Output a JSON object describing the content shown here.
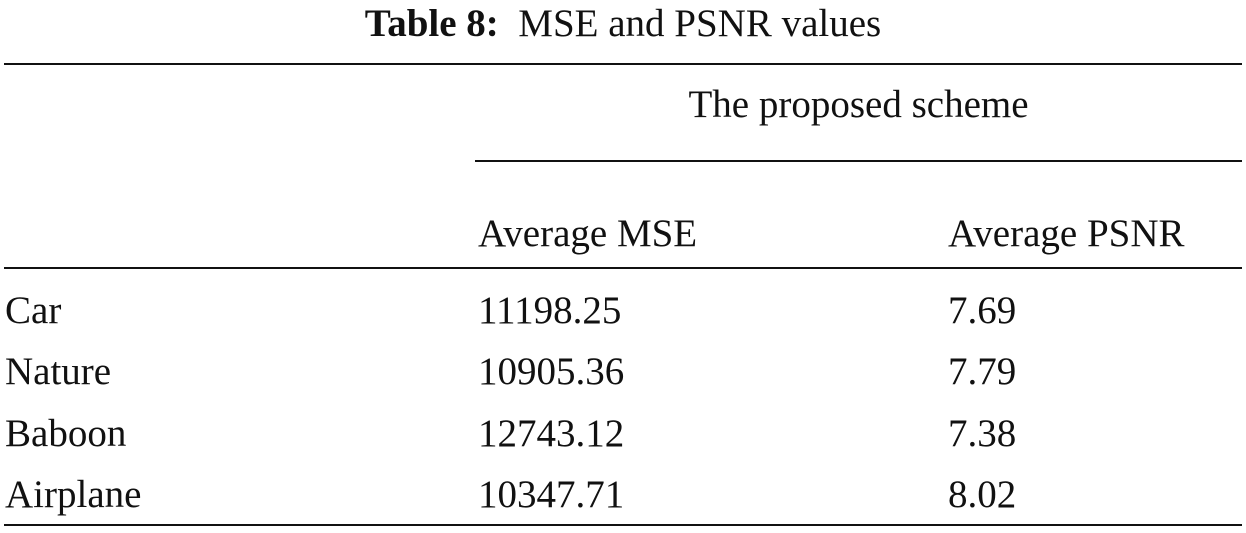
{
  "table": {
    "caption": {
      "label": "Table 8:",
      "text": "MSE and PSNR values"
    },
    "group_header": "The proposed scheme",
    "columns": [
      "Average MSE",
      "Average PSNR"
    ],
    "rows": [
      [
        "Car",
        11198.25,
        7.69
      ],
      [
        "Nature",
        10905.36,
        7.79
      ],
      [
        "Baboon",
        12743.12,
        7.38
      ],
      [
        "Airplane",
        10347.71,
        8.02
      ]
    ]
  }
}
